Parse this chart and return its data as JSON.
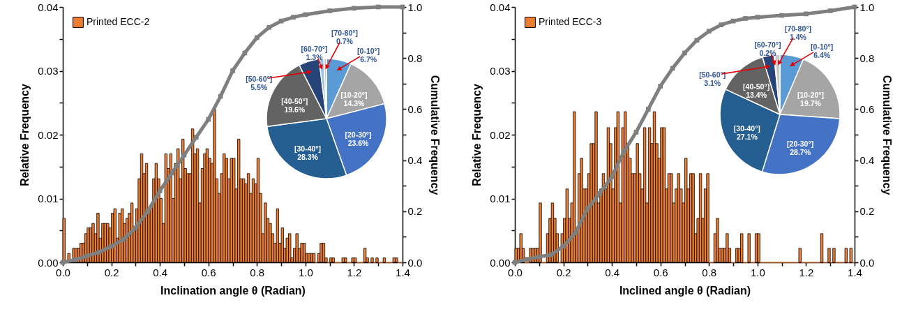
{
  "chart_data": [
    {
      "type": "histogram",
      "xlabel": "Inclination angle θ (Radian)",
      "ylabel": "Relative Frequency",
      "y2label": "Cumulative Frequency",
      "legend": "top left",
      "marker": "square",
      "xlim": [
        0,
        1.4
      ],
      "ylim": [
        0,
        0.04
      ],
      "y2lim": [
        0,
        1
      ],
      "xticks": [
        {
          "value": 0,
          "label": "0.0"
        },
        {
          "value": 0.1,
          "label": null
        },
        {
          "value": 0.2,
          "label": "0.2"
        },
        {
          "value": 0.3,
          "label": null
        },
        {
          "value": 0.4,
          "label": "0.4"
        },
        {
          "value": 0.5,
          "label": null
        },
        {
          "value": 0.6,
          "label": "0.6"
        },
        {
          "value": 0.7,
          "label": null
        },
        {
          "value": 0.8,
          "label": "0.8"
        },
        {
          "value": 0.9,
          "label": null
        },
        {
          "value": 1,
          "label": "1.0"
        },
        {
          "value": 1.1,
          "label": null
        },
        {
          "value": 1.2,
          "label": "1.2"
        },
        {
          "value": 1.3,
          "label": null
        },
        {
          "value": 1.4,
          "label": "1.4"
        }
      ],
      "yticks": [
        {
          "value": 0,
          "label": "0.00"
        },
        {
          "value": 0.005,
          "label": null
        },
        {
          "value": 0.01,
          "label": "0.01"
        },
        {
          "value": 0.015,
          "label": null
        },
        {
          "value": 0.02,
          "label": "0.02"
        },
        {
          "value": 0.025,
          "label": null
        },
        {
          "value": 0.03,
          "label": "0.03"
        },
        {
          "value": 0.035,
          "label": null
        },
        {
          "value": 0.04,
          "label": "0.04"
        }
      ],
      "y2ticks": [
        {
          "value": 0,
          "label": "0.0"
        },
        {
          "value": 0.1,
          "label": null
        },
        {
          "value": 0.2,
          "label": "0.2"
        },
        {
          "value": 0.3,
          "label": null
        },
        {
          "value": 0.4,
          "label": "0.4"
        },
        {
          "value": 0.5,
          "label": null
        },
        {
          "value": 0.6,
          "label": "0.6"
        },
        {
          "value": 0.7,
          "label": null
        },
        {
          "value": 0.8,
          "label": "0.8"
        },
        {
          "value": 0.9,
          "label": null
        },
        {
          "value": 1,
          "label": "1.0"
        }
      ],
      "bins": [
        0,
        0.01,
        0.02,
        0.03,
        0.04,
        0.05,
        0.06,
        0.07,
        0.08,
        0.09,
        0.1,
        0.11,
        0.12,
        0.13,
        0.14,
        0.15,
        0.16,
        0.17,
        0.18,
        0.19,
        0.2,
        0.21,
        0.22,
        0.23,
        0.24,
        0.25,
        0.26,
        0.27,
        0.28,
        0.29,
        0.3,
        0.31,
        0.32,
        0.33,
        0.34,
        0.35,
        0.36,
        0.37,
        0.38,
        0.39,
        0.4,
        0.41,
        0.42,
        0.43,
        0.44,
        0.45,
        0.46,
        0.47,
        0.48,
        0.49,
        0.5,
        0.51,
        0.52,
        0.53,
        0.54,
        0.55,
        0.56,
        0.57,
        0.58,
        0.59,
        0.6,
        0.61,
        0.62,
        0.63,
        0.64,
        0.65,
        0.66,
        0.67,
        0.68,
        0.69,
        0.7,
        0.71,
        0.72,
        0.73,
        0.74,
        0.75,
        0.76,
        0.77,
        0.78,
        0.79,
        0.8,
        0.81,
        0.82,
        0.83,
        0.84,
        0.85,
        0.86,
        0.87,
        0.88,
        0.89,
        0.9,
        0.91,
        0.92,
        0.93,
        0.94,
        0.95,
        0.96,
        0.97,
        0.98,
        0.99,
        1,
        1.01,
        1.02,
        1.03,
        1.04,
        1.05,
        1.06,
        1.07,
        1.08,
        1.09,
        1.1,
        1.11,
        1.12,
        1.13,
        1.14,
        1.15,
        1.16,
        1.17,
        1.18,
        1.19,
        1.2,
        1.21,
        1.22,
        1.23,
        1.24,
        1.25,
        1.26,
        1.27,
        1.28,
        1.29,
        1.3,
        1.31,
        1.32,
        1.33,
        1.34,
        1.35,
        1.36,
        1.37,
        1.38,
        1.39,
        1.4
      ],
      "series": [
        {
          "name": "Printed ECC-2",
          "color": "#ed7d31",
          "values": [
            0.0069,
            null,
            0.0014,
            null,
            0.0022,
            0.0022,
            0.0022,
            0.003,
            0.003,
            0.0045,
            0.0054,
            0.0054,
            0.0061,
            0.0045,
            0.0077,
            0.0038,
            0.0061,
            0.0061,
            0.0061,
            0.0054,
            0.0077,
            0.0084,
            0.0038,
            0.0077,
            0.0084,
            0.0061,
            0.0069,
            0.0077,
            0.0093,
            0.0054,
            0.0084,
            0.0131,
            0.017,
            0.0139,
            0.0155,
            0.0084,
            0.0084,
            0.0131,
            0.0155,
            0.0131,
            0.01,
            0.0061,
            0.017,
            0.0147,
            0.017,
            0.01,
            0.0155,
            0.0178,
            0.0131,
            0.0193,
            0.0147,
            0.0139,
            0.0139,
            0.0209,
            0.017,
            0.0178,
            0.0093,
            0.0147,
            0.017,
            0.0178,
            0.0163,
            0.0155,
            0.024,
            0.0131,
            0.0108,
            0.0139,
            0.017,
            0.0163,
            0.0131,
            0.0163,
            0.0163,
            0.0115,
            0.0193,
            0.0131,
            0.0131,
            0.0123,
            0.0139,
            0.0108,
            0.0131,
            0.0123,
            0.0163,
            0.0108,
            0.0045,
            0.0093,
            0.0069,
            0.0061,
            0.0045,
            0.003,
            0.0084,
            0.003,
            0.0054,
            0.0022,
            0.0038,
            0.0045,
            0.0007,
            0.0022,
            0.0045,
            0.0022,
            0.003,
            0.003,
            0.0014,
            0.0014,
            0.0014,
            0.0014,
            0,
            0.0014,
            0.003,
            0.003,
            0.0007,
            0,
            0.0007,
            0.0007,
            0,
            0,
            0,
            0.0007,
            0.0007,
            0,
            0,
            0.0007,
            0.0007,
            0,
            0,
            0,
            0.0022,
            0.0007,
            0,
            0.0007,
            0,
            0.0007,
            0,
            0,
            0.0007,
            0,
            0,
            0,
            0.0007,
            0.0007,
            0,
            0
          ]
        },
        {
          "type": "line",
          "axis": "y2",
          "color": "#7f7f7f",
          "x": [
            0,
            0.05,
            0.1,
            0.15,
            0.2,
            0.25,
            0.3,
            0.35,
            0.4,
            0.45,
            0.5,
            0.55,
            0.6,
            0.65,
            0.7,
            0.75,
            0.8,
            0.85,
            0.9,
            0.95,
            1,
            1.1,
            1.2,
            1.3,
            1.4
          ],
          "values": [
            0,
            0.01,
            0.025,
            0.04,
            0.063,
            0.09,
            0.135,
            0.2,
            0.28,
            0.35,
            0.42,
            0.49,
            0.56,
            0.65,
            0.75,
            0.82,
            0.88,
            0.92,
            0.945,
            0.96,
            0.97,
            0.985,
            0.995,
            1,
            1
          ]
        }
      ]
    },
    {
      "type": "pie",
      "categories": [
        "[0-10°]",
        "[10-20°]",
        "[20-30°]",
        "[30-40°]",
        "[40-50°]",
        "[50-60°]",
        "[60-70°]",
        "[70-80°]"
      ],
      "values": [
        6.7,
        14.3,
        23.6,
        28.3,
        19.6,
        5.5,
        1.3,
        0.7
      ],
      "value_labels": [
        "6.7%",
        "14.3%",
        "23.6%",
        "28.3%",
        "19.6%",
        "5.5%",
        "1.3%",
        "0.7%"
      ],
      "colors": [
        "#5b9bd5",
        "#a5a5a5",
        "#4472c4",
        "#255e91",
        "#636363",
        "#264478",
        "#9dc3e6",
        "#c9c9c9"
      ]
    },
    {
      "type": "histogram",
      "xlabel": "Inclined angle θ (Radian)",
      "ylabel": "Relative Frequency",
      "y2label": "Cumulative Frequency",
      "legend": "top left",
      "marker": "square",
      "xlim": [
        0,
        1.4
      ],
      "ylim": [
        0,
        0.04
      ],
      "y2lim": [
        0,
        1
      ],
      "xticks": [
        {
          "value": 0,
          "label": "0.0"
        },
        {
          "value": 0.1,
          "label": null
        },
        {
          "value": 0.2,
          "label": "0.2"
        },
        {
          "value": 0.3,
          "label": null
        },
        {
          "value": 0.4,
          "label": "0.4"
        },
        {
          "value": 0.5,
          "label": null
        },
        {
          "value": 0.6,
          "label": "0.6"
        },
        {
          "value": 0.7,
          "label": null
        },
        {
          "value": 0.8,
          "label": "0.8"
        },
        {
          "value": 0.9,
          "label": null
        },
        {
          "value": 1,
          "label": "1.0"
        },
        {
          "value": 1.1,
          "label": null
        },
        {
          "value": 1.2,
          "label": "1.2"
        },
        {
          "value": 1.3,
          "label": null
        },
        {
          "value": 1.4,
          "label": "1.4"
        }
      ],
      "yticks": [
        {
          "value": 0,
          "label": "0.00"
        },
        {
          "value": 0.005,
          "label": null
        },
        {
          "value": 0.01,
          "label": "0.01"
        },
        {
          "value": 0.015,
          "label": null
        },
        {
          "value": 0.02,
          "label": "0.02"
        },
        {
          "value": 0.025,
          "label": null
        },
        {
          "value": 0.03,
          "label": "0.03"
        },
        {
          "value": 0.035,
          "label": null
        },
        {
          "value": 0.04,
          "label": "0.04"
        }
      ],
      "y2ticks": [
        {
          "value": 0,
          "label": "0.0"
        },
        {
          "value": 0.1,
          "label": null
        },
        {
          "value": 0.2,
          "label": "0.2"
        },
        {
          "value": 0.3,
          "label": null
        },
        {
          "value": 0.4,
          "label": "0.4"
        },
        {
          "value": 0.5,
          "label": null
        },
        {
          "value": 0.6,
          "label": "0.6"
        },
        {
          "value": 0.7,
          "label": null
        },
        {
          "value": 0.8,
          "label": "0.8"
        },
        {
          "value": 0.9,
          "label": null
        },
        {
          "value": 1,
          "label": "1.0"
        }
      ],
      "bins": [
        0,
        0.01,
        0.02,
        0.03,
        0.04,
        0.05,
        0.06,
        0.07,
        0.08,
        0.09,
        0.1,
        0.11,
        0.12,
        0.13,
        0.14,
        0.15,
        0.16,
        0.17,
        0.18,
        0.19,
        0.2,
        0.21,
        0.22,
        0.23,
        0.24,
        0.25,
        0.26,
        0.27,
        0.28,
        0.29,
        0.3,
        0.31,
        0.32,
        0.33,
        0.34,
        0.35,
        0.36,
        0.37,
        0.38,
        0.39,
        0.4,
        0.41,
        0.42,
        0.43,
        0.44,
        0.45,
        0.46,
        0.47,
        0.48,
        0.49,
        0.5,
        0.51,
        0.52,
        0.53,
        0.54,
        0.55,
        0.56,
        0.57,
        0.58,
        0.59,
        0.6,
        0.61,
        0.62,
        0.63,
        0.64,
        0.65,
        0.66,
        0.67,
        0.68,
        0.69,
        0.7,
        0.71,
        0.72,
        0.73,
        0.74,
        0.75,
        0.76,
        0.77,
        0.78,
        0.79,
        0.8,
        0.81,
        0.82,
        0.83,
        0.84,
        0.85,
        0.86,
        0.87,
        0.88,
        0.89,
        0.9,
        0.91,
        0.92,
        0.93,
        0.94,
        0.95,
        0.96,
        0.97,
        0.98,
        0.99,
        1,
        1.01,
        1.02,
        1.03,
        1.04,
        1.05,
        1.06,
        1.07,
        1.08,
        1.09,
        1.1,
        1.11,
        1.12,
        1.13,
        1.14,
        1.15,
        1.16,
        1.17,
        1.18,
        1.19,
        1.2,
        1.21,
        1.22,
        1.23,
        1.24,
        1.25,
        1.26,
        1.27,
        1.28,
        1.29,
        1.3,
        1.31,
        1.32,
        1.33,
        1.34,
        1.35,
        1.36,
        1.37,
        1.38,
        1.39,
        1.4
      ],
      "series": [
        {
          "name": "Printed ECC-3",
          "color": "#ed7d31",
          "values": [
            0.0022,
            0.0022,
            0.0045,
            0.0022,
            0,
            0,
            0.0022,
            0.0022,
            0.0022,
            0.0022,
            0.0093,
            0,
            0,
            0.0045,
            0.0069,
            0.0093,
            0.0069,
            0.0045,
            0,
            0.0045,
            0.0069,
            0.0115,
            0.0069,
            0.0093,
            0.0236,
            0.0045,
            0.0139,
            0.0163,
            0.0115,
            0.0115,
            0.0139,
            0.0186,
            0.0186,
            0.0236,
            0.0093,
            0.0115,
            0.0139,
            0.0115,
            0.0211,
            0.0186,
            0.0115,
            0.0211,
            0.0236,
            0.0093,
            0.0211,
            0.0236,
            0.0186,
            0.0163,
            0.0139,
            0.0139,
            0.0186,
            0.0139,
            0.0115,
            0.0211,
            0.0093,
            0.0211,
            0.0186,
            0.0236,
            0.0186,
            0.0163,
            0.0211,
            0.0211,
            0.0115,
            0.0139,
            0.0139,
            0.0093,
            0.0115,
            0.0139,
            0.0115,
            0.0093,
            0.0163,
            0.0115,
            0.0139,
            0.0139,
            0.0045,
            0.0069,
            0.0139,
            0.0069,
            0.0115,
            0.0139,
            0,
            0,
            0.0045,
            0.0069,
            0.0022,
            0.0022,
            0.0022,
            0.0045,
            0.0022,
            0,
            0,
            0.0022,
            0.0022,
            0.0045,
            0,
            0,
            0.0045,
            0,
            0,
            0.0045,
            0.0045,
            0,
            0,
            0,
            0,
            0,
            0,
            0,
            0,
            0,
            0,
            0,
            0,
            0,
            0,
            0,
            0,
            0.0022,
            0,
            0,
            0,
            0,
            0,
            0,
            0,
            0,
            0.0045,
            0,
            0,
            0.0022,
            0,
            0.0022,
            0,
            0,
            0,
            0,
            0.0022,
            0,
            0.0022,
            0
          ]
        },
        {
          "type": "line",
          "axis": "y2",
          "color": "#7f7f7f",
          "x": [
            0,
            0.05,
            0.1,
            0.15,
            0.2,
            0.25,
            0.3,
            0.35,
            0.4,
            0.45,
            0.5,
            0.55,
            0.6,
            0.65,
            0.7,
            0.75,
            0.8,
            0.85,
            0.9,
            0.95,
            1,
            1.1,
            1.2,
            1.3,
            1.4
          ],
          "values": [
            0,
            0.012,
            0.022,
            0.03,
            0.063,
            0.117,
            0.21,
            0.27,
            0.335,
            0.435,
            0.51,
            0.6,
            0.69,
            0.76,
            0.82,
            0.87,
            0.905,
            0.93,
            0.945,
            0.955,
            0.96,
            0.967,
            0.973,
            0.985,
            1
          ]
        }
      ]
    },
    {
      "type": "pie",
      "categories": [
        "[0-10°]",
        "[10-20°]",
        "[20-30°]",
        "[30-40°]",
        "[40-50°]",
        "[50-60°]",
        "[60-70°]",
        "[70-80°]"
      ],
      "values": [
        6.4,
        19.7,
        28.7,
        27.1,
        13.4,
        3.1,
        0.2,
        1.4
      ],
      "value_labels": [
        "6.4%",
        "19.7%",
        "28.7%",
        "27.1%",
        "13.4%",
        "3.1%",
        "0.2%",
        "1.4%"
      ],
      "colors": [
        "#5b9bd5",
        "#a5a5a5",
        "#4472c4",
        "#255e91",
        "#636363",
        "#264478",
        "#9dc3e6",
        "#c9c9c9"
      ]
    }
  ]
}
